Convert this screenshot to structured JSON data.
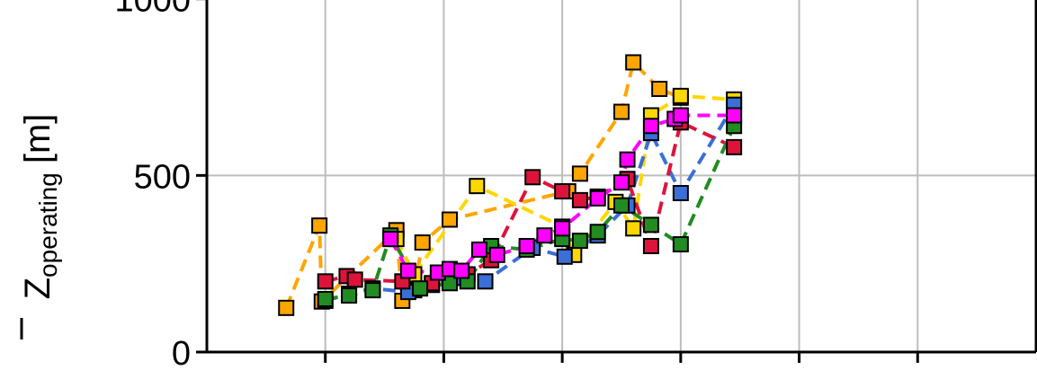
{
  "chart_data": {
    "type": "scatter",
    "title": "",
    "xlabel": "",
    "ylabel": {
      "symbol": "Z",
      "subscript": "operating",
      "unit": "[m]"
    },
    "ylim": [
      0,
      1200
    ],
    "yticks": [
      0,
      500,
      1000
    ],
    "xlim": [
      0,
      7
    ],
    "grid": true,
    "legend": "none",
    "marker": "square",
    "line_style": "dashed",
    "series": [
      {
        "color": "#ffa500",
        "x": [
          0.67,
          0.95,
          0.97,
          1.6,
          1.65,
          1.75,
          1.82,
          2.05,
          3.05,
          3.15,
          3.5,
          3.6,
          3.82,
          4.0
        ],
        "y": [
          125,
          358,
          143,
          345,
          145,
          175,
          310,
          375,
          455,
          505,
          680,
          820,
          745,
          720
        ]
      },
      {
        "color": "#ffd700",
        "x": [
          1.6,
          1.75,
          2.28,
          3.0,
          3.1,
          3.45,
          3.6,
          3.75,
          4.0,
          4.45
        ],
        "y": [
          320,
          220,
          470,
          355,
          275,
          425,
          350,
          670,
          725,
          715
        ]
      },
      {
        "color": "#3b6fd6",
        "x": [
          1.0,
          1.2,
          1.4,
          1.7,
          1.9,
          2.1,
          2.35,
          2.75,
          3.02,
          3.3,
          3.55,
          3.75,
          4.0,
          4.45
        ],
        "y": [
          145,
          165,
          180,
          170,
          190,
          210,
          200,
          295,
          270,
          330,
          415,
          620,
          450,
          700
        ]
      },
      {
        "color": "#dc143c",
        "x": [
          1.0,
          1.18,
          1.25,
          1.65,
          1.9,
          2.2,
          2.4,
          2.75,
          3.0,
          3.15,
          3.3,
          3.55,
          3.75,
          4.0,
          4.45
        ],
        "y": [
          200,
          215,
          205,
          200,
          195,
          220,
          260,
          495,
          455,
          430,
          440,
          490,
          300,
          650,
          580
        ]
      },
      {
        "color": "#228b22",
        "x": [
          1.0,
          1.2,
          1.4,
          1.55,
          1.8,
          2.05,
          2.2,
          2.4,
          2.7,
          3.0,
          3.15,
          3.3,
          3.5,
          3.75,
          4.0,
          4.45
        ],
        "y": [
          150,
          160,
          175,
          330,
          180,
          195,
          200,
          300,
          290,
          320,
          315,
          340,
          415,
          360,
          305,
          640
        ]
      },
      {
        "color": "#ff00ff",
        "x": [
          1.55,
          1.7,
          1.95,
          2.05,
          2.15,
          2.3,
          2.45,
          2.7,
          2.85,
          3.0,
          3.3,
          3.5,
          3.55,
          3.75,
          3.95,
          4.0,
          4.45
        ],
        "y": [
          320,
          230,
          225,
          235,
          230,
          290,
          275,
          300,
          330,
          350,
          435,
          480,
          545,
          640,
          660,
          670,
          670
        ]
      }
    ]
  }
}
